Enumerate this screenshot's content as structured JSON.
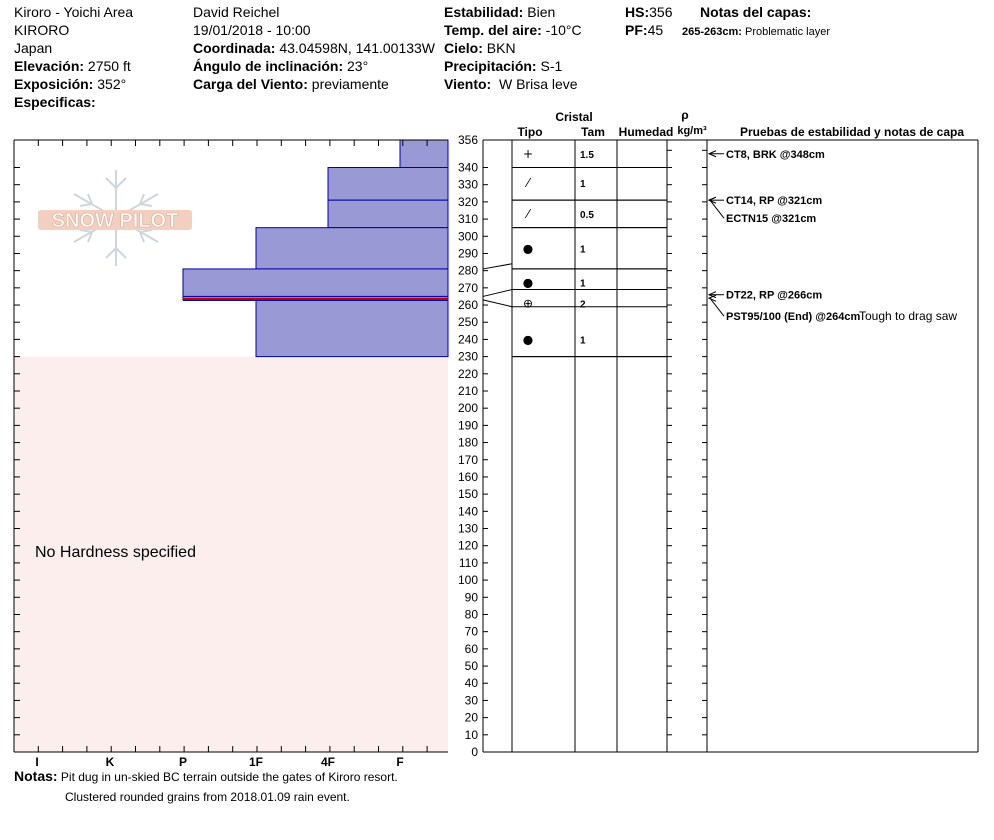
{
  "header": {
    "location": "Kiroro - Yoichi Area",
    "site": "KIRORO",
    "country": "Japan",
    "elevation_label": "Elevación:",
    "elevation": "2750 ft",
    "aspect_label": "Exposición:",
    "aspect": "352°",
    "specifics_label": "Especificas:",
    "observer": "David Reichel",
    "datetime": "19/01/2018 - 10:00",
    "coord_label": "Coordinada:",
    "coord": "43.04598N, 141.00133W",
    "slope_label": "Ángulo de inclinación:",
    "slope": "23°",
    "wind_load_label": "Carga del Viento:",
    "wind_load": "previamente",
    "stability_label": "Estabilidad:",
    "stability": "Bien",
    "air_temp_label": "Temp. del aire:",
    "air_temp": "-10°C",
    "sky_label": "Cielo:",
    "sky": "BKN",
    "precip_label": "Precipitación:",
    "precip": "S-1",
    "wind_label": "Viento:",
    "wind": "W Brisa leve",
    "hs_label": "HS:",
    "hs": "356",
    "pf_label": "PF:",
    "pf": "45",
    "layer_notes_label": "Notas del capas:",
    "layer_note_range": "265-263cm:",
    "layer_note_text": "Problematic layer"
  },
  "logo_text": "SNOW PILOT",
  "no_hardness": "No Hardness specified",
  "columns": {
    "crystal": "Cristal",
    "type": "Tipo",
    "size": "Tam",
    "moisture": "Humedad",
    "rho": "ρ",
    "density_unit": "kg/m³",
    "tests": "Pruebas de estabilidad y notas de capa"
  },
  "notes_label": "Notas:",
  "notes": [
    "Pit dug in un-skied BC terrain outside the gates of Kiroro resort.",
    "Clustered rounded grains from 2018.01.09 rain event."
  ],
  "colors": {
    "layer_fill": "#9999d6",
    "layer_stroke": "#0000aa",
    "ground_fill": "#fdeeee",
    "weak_line": "#cc0000"
  },
  "chart_data": {
    "type": "bar",
    "orientation": "horizontal",
    "ylim": [
      0,
      356
    ],
    "y_ticks": [
      0,
      10,
      20,
      30,
      40,
      50,
      60,
      70,
      80,
      90,
      100,
      110,
      120,
      130,
      140,
      150,
      160,
      170,
      180,
      190,
      200,
      210,
      220,
      230,
      240,
      250,
      260,
      270,
      280,
      290,
      300,
      310,
      320,
      330,
      340,
      356
    ],
    "x_categories": [
      "I",
      "K",
      "P",
      "1F",
      "4F",
      "F"
    ],
    "layers": [
      {
        "top": 356,
        "bottom": 340,
        "hardness": "F"
      },
      {
        "top": 340,
        "bottom": 321,
        "hardness": "4F"
      },
      {
        "top": 321,
        "bottom": 305,
        "hardness": "4F"
      },
      {
        "top": 305,
        "bottom": 281,
        "hardness": "1F"
      },
      {
        "top": 281,
        "bottom": 265,
        "hardness": "P"
      },
      {
        "top": 265,
        "bottom": 263,
        "hardness": "P"
      },
      {
        "top": 263,
        "bottom": 230,
        "hardness": "1F"
      }
    ],
    "weak_layer": [
      263,
      265
    ],
    "ground_top": 230,
    "profile_ticks": [
      356,
      340,
      321,
      305,
      281,
      265,
      263,
      230
    ],
    "crystal_layers": [
      {
        "center": 348,
        "type": "+",
        "size": "1.5"
      },
      {
        "center": 331,
        "type": "⁄",
        "size": "1"
      },
      {
        "center": 313,
        "type": "⁄",
        "size": "0.5"
      },
      {
        "center": 293,
        "type": "●",
        "size": "1"
      },
      {
        "center": 273,
        "type": "●",
        "size": "1"
      },
      {
        "center": 261,
        "type": "⊕",
        "size": "2"
      },
      {
        "center": 240,
        "type": "●",
        "size": "1"
      }
    ],
    "tests": [
      {
        "depth": 348,
        "text": "CT8, BRK @348cm",
        "note": ""
      },
      {
        "depth": 321,
        "text": "CT14, RP @321cm",
        "note": ""
      },
      {
        "depth": 321,
        "text": "ECTN15 @321cm",
        "note": ""
      },
      {
        "depth": 266,
        "text": "DT22, RP @266cm",
        "note": ""
      },
      {
        "depth": 264,
        "text": "PST95/100 (End) @264cm",
        "note": "Tough to drag saw"
      }
    ]
  }
}
